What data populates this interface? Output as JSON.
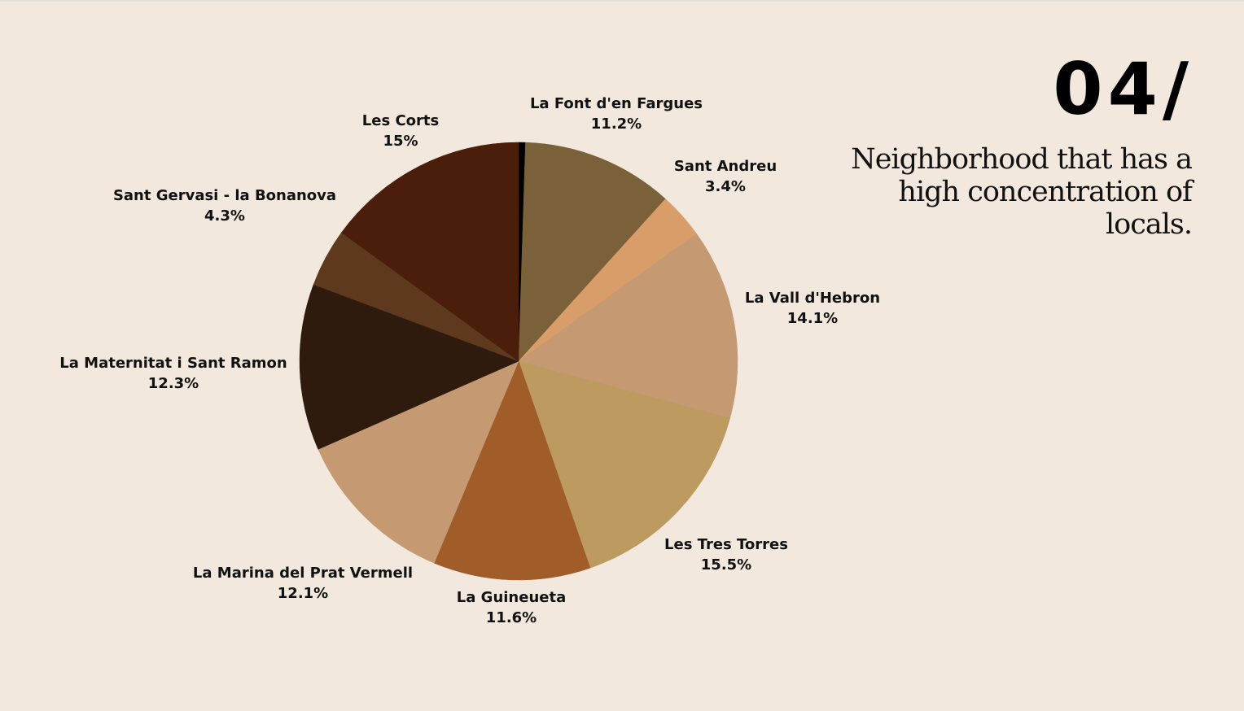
{
  "slide": {
    "number": "04/",
    "headline": "Neighborhood that has a high concentration of locals."
  },
  "colors": {
    "background": "#f2e8dd"
  },
  "chart_data": {
    "type": "pie",
    "title": "",
    "start_angle_deg": 0,
    "direction": "clockwise",
    "slices": [
      {
        "label": "",
        "value": 0.5,
        "value_label": "",
        "color": "#000000"
      },
      {
        "label": "La Font d'en Fargues",
        "value": 11.2,
        "value_label": "11.2%",
        "color": "#7a6139"
      },
      {
        "label": "Sant Andreu",
        "value": 3.4,
        "value_label": "3.4%",
        "color": "#d99d69"
      },
      {
        "label": "La Vall d'Hebron",
        "value": 14.1,
        "value_label": "14.1%",
        "color": "#c59a73"
      },
      {
        "label": "Les Tres Torres",
        "value": 15.5,
        "value_label": "15.5%",
        "color": "#bd9a60"
      },
      {
        "label": "La Guineueta",
        "value": 11.6,
        "value_label": "11.6%",
        "color": "#a05c29"
      },
      {
        "label": "La Marina del Prat Vermell",
        "value": 12.1,
        "value_label": "12.1%",
        "color": "#c59a73"
      },
      {
        "label": "La Maternitat i Sant Ramon",
        "value": 12.3,
        "value_label": "12.3%",
        "color": "#2e1b0d"
      },
      {
        "label": "Sant Gervasi - la Bonanova",
        "value": 4.3,
        "value_label": "4.3%",
        "color": "#5e391d"
      },
      {
        "label": "Les Corts",
        "value": 15,
        "value_label": "15%",
        "color": "#4a1e0b"
      }
    ]
  }
}
